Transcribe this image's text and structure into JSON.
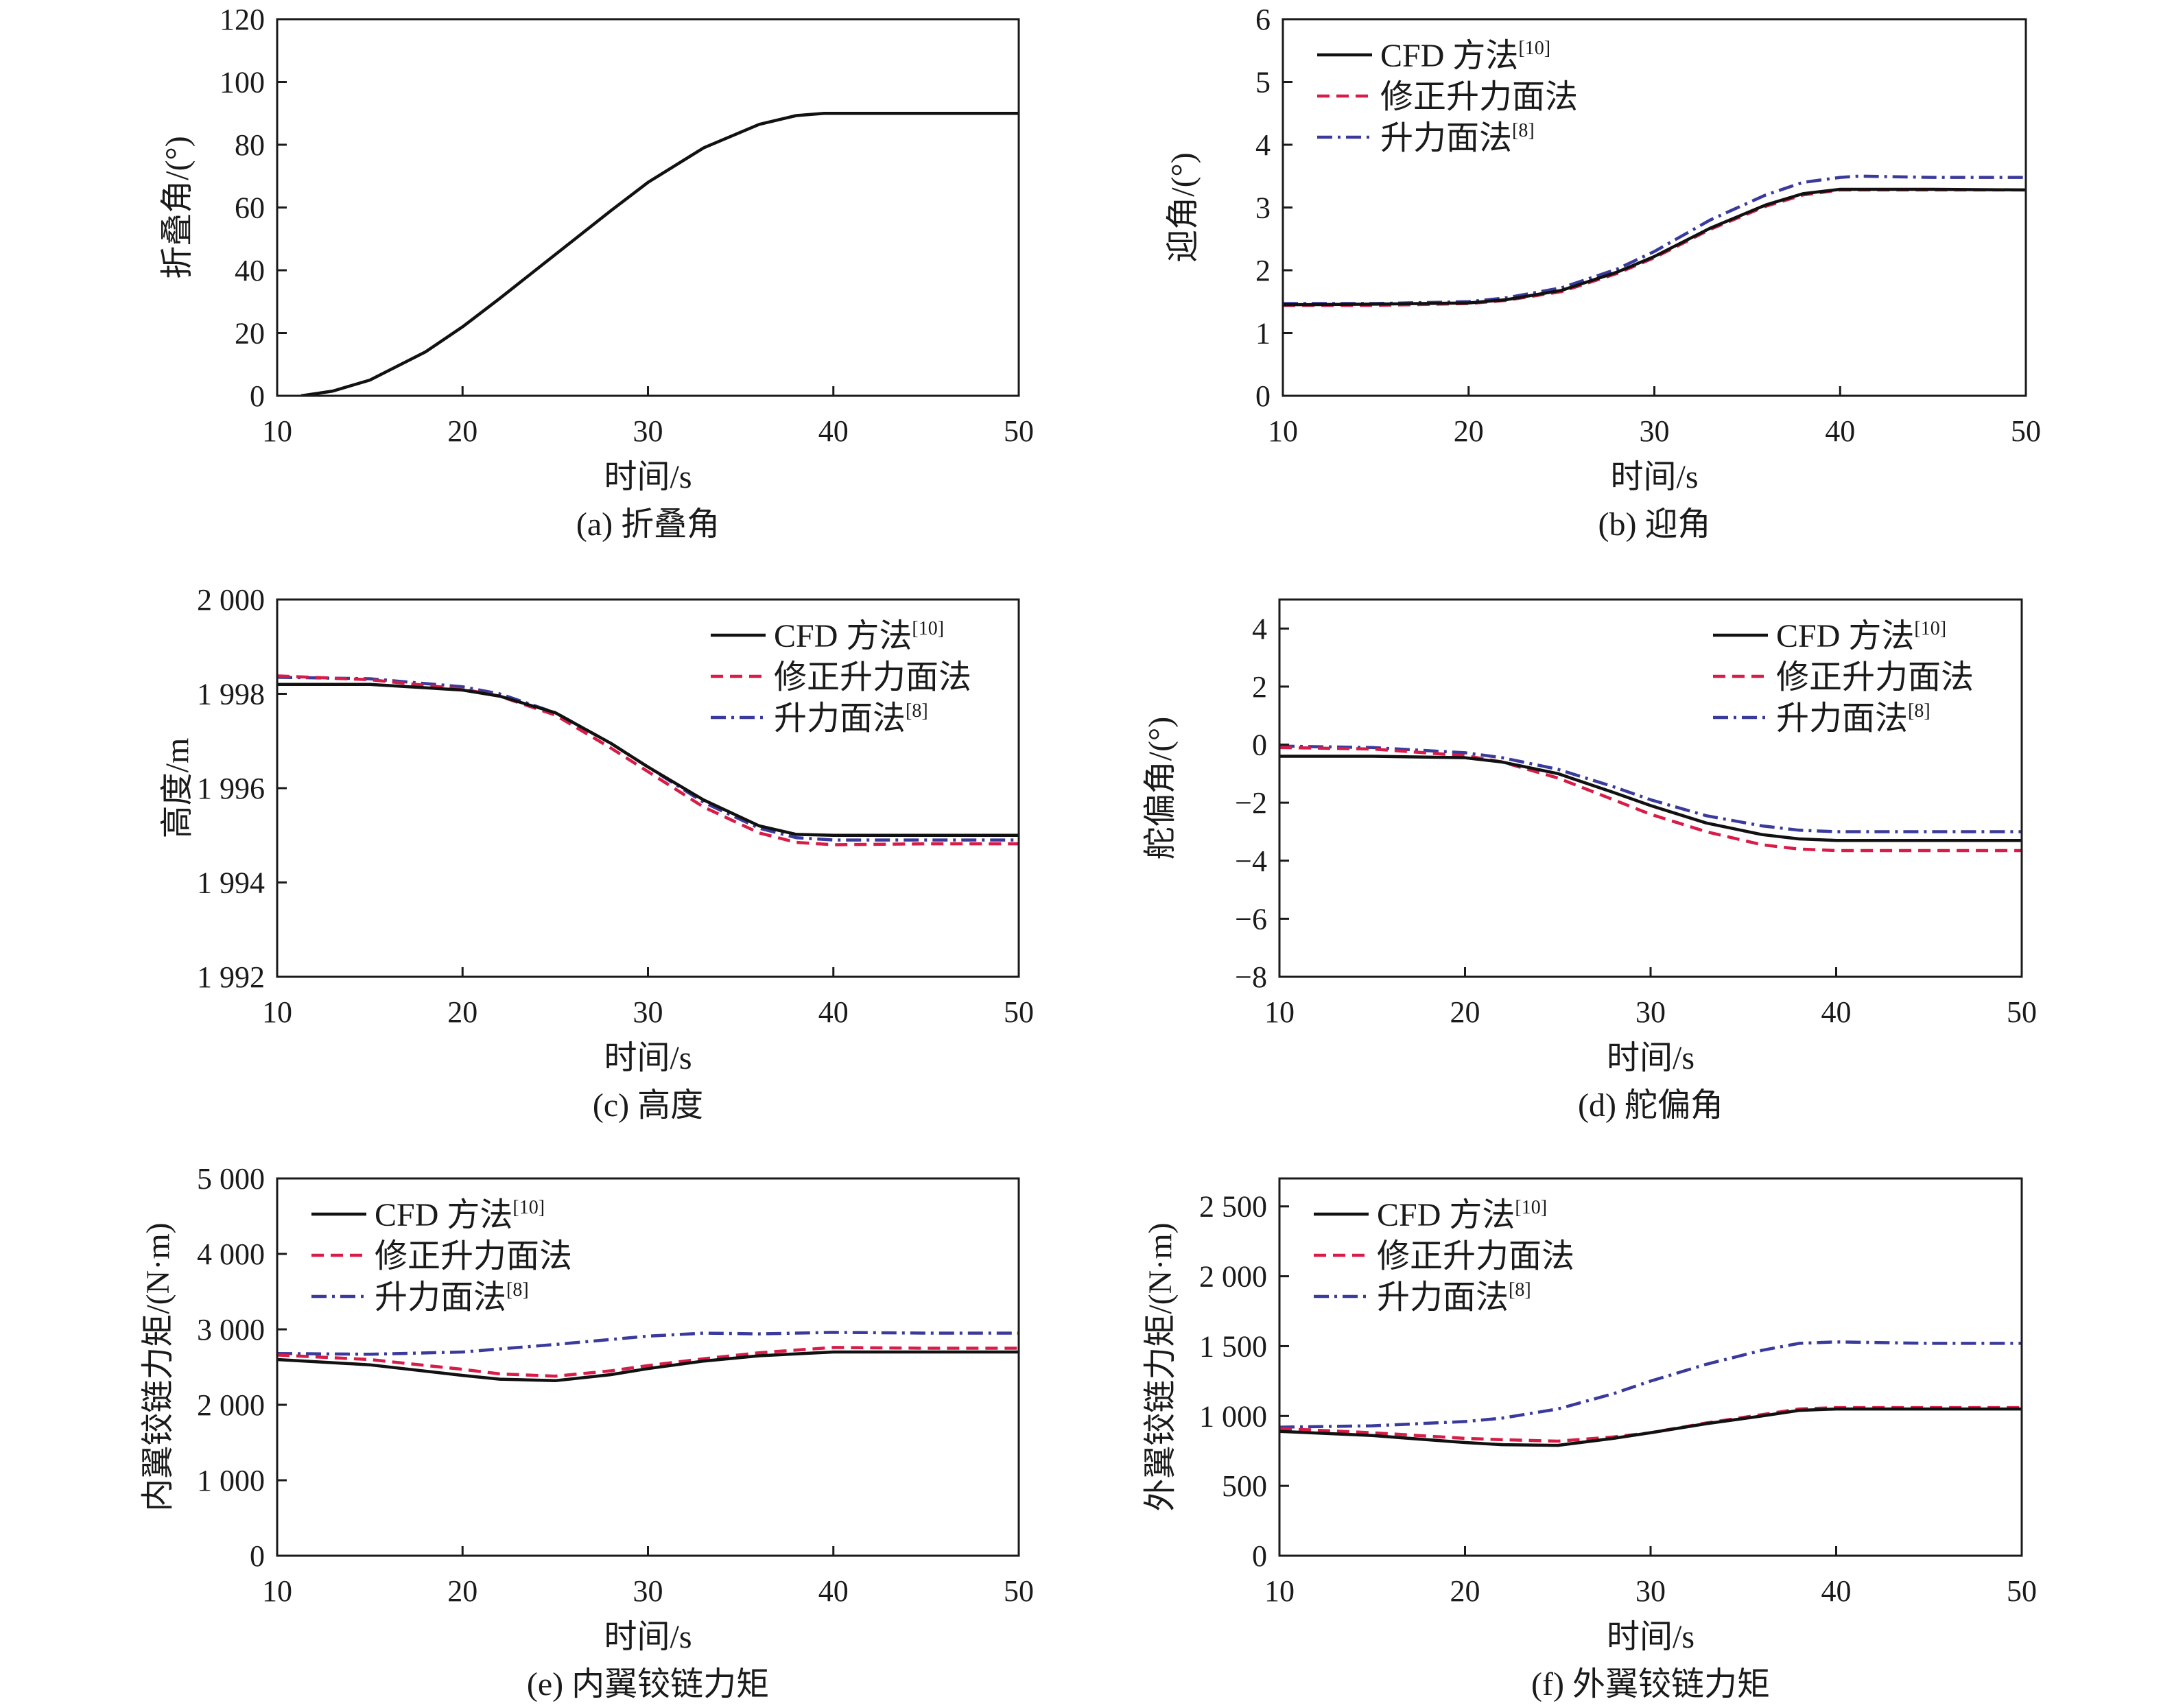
{
  "styles": {
    "cfd": {
      "color": "#111111",
      "dash": ""
    },
    "corrected": {
      "color": "#d81b47",
      "dash": "18,10"
    },
    "lifting": {
      "color": "#3a3a9c",
      "dash": "22,8,4,8"
    }
  },
  "chart_data": [
    {
      "id": "a",
      "type": "line",
      "caption": "(a) 折叠角",
      "xlabel": "时间/s",
      "ylabel": "折叠角/(°)",
      "xlim": [
        10,
        50
      ],
      "ylim": [
        0,
        120
      ],
      "xticks": [
        10,
        20,
        30,
        40,
        50
      ],
      "yticks": [
        0,
        20,
        40,
        60,
        80,
        100,
        120
      ],
      "ytick_labels": [
        "0",
        "20",
        "40",
        "60",
        "80",
        "100",
        "120"
      ],
      "legend": null,
      "series": [
        {
          "key": "cfd",
          "x": [
            11.3,
            13,
            15,
            18,
            20,
            22,
            25,
            28,
            30,
            33,
            36,
            38,
            39.5,
            41,
            45,
            50
          ],
          "y": [
            0,
            1.5,
            5,
            14,
            22,
            31,
            45,
            59,
            68,
            79,
            86.5,
            89.3,
            90,
            90,
            90,
            90
          ]
        }
      ]
    },
    {
      "id": "b",
      "type": "line",
      "caption": "(b) 迎角",
      "xlabel": "时间/s",
      "ylabel": "迎角/(°)",
      "xlim": [
        10,
        50
      ],
      "ylim": [
        0,
        6
      ],
      "xticks": [
        10,
        20,
        30,
        40,
        50
      ],
      "yticks": [
        0,
        1,
        2,
        3,
        4,
        5,
        6
      ],
      "ytick_labels": [
        "0",
        "1",
        "2",
        "3",
        "4",
        "5",
        "6"
      ],
      "legend": {
        "position": "top-left",
        "entries": [
          {
            "key": "cfd",
            "label": "CFD 方法",
            "ref": "[10]"
          },
          {
            "key": "corrected",
            "label": "修正升力面法",
            "ref": ""
          },
          {
            "key": "lifting",
            "label": "升力面法",
            "ref": "[8]"
          }
        ]
      },
      "series": [
        {
          "key": "lifting",
          "x": [
            10,
            15,
            20,
            22,
            25,
            28,
            30,
            33,
            36,
            38,
            40,
            41,
            45,
            50
          ],
          "y": [
            1.47,
            1.47,
            1.5,
            1.56,
            1.72,
            2.02,
            2.3,
            2.8,
            3.2,
            3.4,
            3.48,
            3.5,
            3.48,
            3.48
          ]
        },
        {
          "key": "corrected",
          "x": [
            10,
            15,
            20,
            22,
            25,
            28,
            30,
            33,
            36,
            38,
            40,
            45,
            50
          ],
          "y": [
            1.44,
            1.44,
            1.47,
            1.52,
            1.66,
            1.95,
            2.2,
            2.65,
            3.02,
            3.2,
            3.28,
            3.28,
            3.28
          ]
        },
        {
          "key": "cfd",
          "x": [
            10,
            15,
            20,
            22,
            25,
            28,
            30,
            33,
            36,
            38,
            40,
            45,
            50
          ],
          "y": [
            1.45,
            1.46,
            1.48,
            1.53,
            1.68,
            1.97,
            2.22,
            2.67,
            3.04,
            3.22,
            3.29,
            3.29,
            3.28
          ]
        }
      ]
    },
    {
      "id": "c",
      "type": "line",
      "caption": "(c) 高度",
      "xlabel": "时间/s",
      "ylabel": "高度/m",
      "xlim": [
        10,
        50
      ],
      "ylim": [
        1992,
        2000
      ],
      "xticks": [
        10,
        20,
        30,
        40,
        50
      ],
      "yticks": [
        1992,
        1994,
        1996,
        1998,
        2000
      ],
      "ytick_labels": [
        "1 992",
        "1 994",
        "1 996",
        "1 998",
        "2 000"
      ],
      "legend": {
        "position": "top-right",
        "entries": [
          {
            "key": "cfd",
            "label": "CFD 方法",
            "ref": "[10]"
          },
          {
            "key": "corrected",
            "label": "修正升力面法",
            "ref": ""
          },
          {
            "key": "lifting",
            "label": "升力面法",
            "ref": "[8]"
          }
        ]
      },
      "series": [
        {
          "key": "lifting",
          "x": [
            10,
            15,
            20,
            22,
            25,
            28,
            30,
            33,
            36,
            38,
            40,
            45,
            50
          ],
          "y": [
            1998.35,
            1998.32,
            1998.15,
            1998.0,
            1997.6,
            1996.95,
            1996.45,
            1995.7,
            1995.15,
            1994.95,
            1994.9,
            1994.9,
            1994.9
          ]
        },
        {
          "key": "corrected",
          "x": [
            10,
            15,
            20,
            22,
            25,
            28,
            30,
            33,
            36,
            38,
            40,
            45,
            50
          ],
          "y": [
            1998.38,
            1998.3,
            1998.1,
            1997.95,
            1997.55,
            1996.85,
            1996.35,
            1995.6,
            1995.05,
            1994.85,
            1994.8,
            1994.82,
            1994.82
          ]
        },
        {
          "key": "cfd",
          "x": [
            10,
            15,
            20,
            22,
            25,
            28,
            30,
            33,
            36,
            38,
            40,
            45,
            50
          ],
          "y": [
            1998.2,
            1998.2,
            1998.08,
            1997.95,
            1997.6,
            1996.95,
            1996.45,
            1995.75,
            1995.2,
            1995.02,
            1995.0,
            1995.0,
            1995.0
          ]
        }
      ]
    },
    {
      "id": "d",
      "type": "line",
      "caption": "(d) 舵偏角",
      "xlabel": "时间/s",
      "ylabel": "舵偏角/(°)",
      "xlim": [
        10,
        50
      ],
      "ylim": [
        -8,
        5
      ],
      "xticks": [
        10,
        20,
        30,
        40,
        50
      ],
      "yticks": [
        -8,
        -6,
        -4,
        -2,
        0,
        2,
        4
      ],
      "ytick_labels": [
        "−8",
        "−6",
        "−4",
        "−2",
        "0",
        "2",
        "4"
      ],
      "legend": {
        "position": "top-right",
        "entries": [
          {
            "key": "cfd",
            "label": "CFD 方法",
            "ref": "[10]"
          },
          {
            "key": "corrected",
            "label": "修正升力面法",
            "ref": ""
          },
          {
            "key": "lifting",
            "label": "升力面法",
            "ref": "[8]"
          }
        ]
      },
      "series": [
        {
          "key": "lifting",
          "x": [
            10,
            15,
            20,
            22,
            25,
            28,
            30,
            33,
            36,
            38,
            40,
            45,
            50
          ],
          "y": [
            -0.05,
            -0.1,
            -0.28,
            -0.45,
            -0.85,
            -1.45,
            -1.9,
            -2.45,
            -2.8,
            -2.95,
            -3.0,
            -3.0,
            -3.0
          ]
        },
        {
          "key": "corrected",
          "x": [
            10,
            15,
            20,
            22,
            25,
            28,
            30,
            33,
            36,
            38,
            40,
            45,
            50
          ],
          "y": [
            -0.1,
            -0.15,
            -0.38,
            -0.6,
            -1.15,
            -1.9,
            -2.4,
            -3.0,
            -3.45,
            -3.6,
            -3.65,
            -3.65,
            -3.65
          ]
        },
        {
          "key": "cfd",
          "x": [
            10,
            15,
            20,
            22,
            25,
            28,
            30,
            33,
            36,
            38,
            40,
            45,
            50
          ],
          "y": [
            -0.4,
            -0.4,
            -0.45,
            -0.6,
            -1.0,
            -1.65,
            -2.1,
            -2.7,
            -3.1,
            -3.25,
            -3.3,
            -3.3,
            -3.3
          ]
        }
      ]
    },
    {
      "id": "e",
      "type": "line",
      "caption": "(e) 内翼铰链力矩",
      "xlabel": "时间/s",
      "ylabel": "内翼铰链力矩/(N·m)",
      "xlim": [
        10,
        50
      ],
      "ylim": [
        0,
        5000
      ],
      "xticks": [
        10,
        20,
        30,
        40,
        50
      ],
      "yticks": [
        0,
        1000,
        2000,
        3000,
        4000,
        5000
      ],
      "ytick_labels": [
        "0",
        "1 000",
        "2 000",
        "3 000",
        "4 000",
        "5 000"
      ],
      "legend": {
        "position": "top-left",
        "entries": [
          {
            "key": "cfd",
            "label": "CFD 方法",
            "ref": "[10]"
          },
          {
            "key": "corrected",
            "label": "修正升力面法",
            "ref": ""
          },
          {
            "key": "lifting",
            "label": "升力面法",
            "ref": "[8]"
          }
        ]
      },
      "series": [
        {
          "key": "lifting",
          "x": [
            10,
            15,
            20,
            25,
            30,
            33,
            36,
            40,
            45,
            50
          ],
          "y": [
            2680,
            2670,
            2700,
            2800,
            2910,
            2950,
            2940,
            2960,
            2950,
            2950
          ]
        },
        {
          "key": "corrected",
          "x": [
            10,
            15,
            20,
            22,
            25,
            28,
            30,
            33,
            36,
            40,
            45,
            50
          ],
          "y": [
            2660,
            2600,
            2470,
            2410,
            2380,
            2450,
            2520,
            2610,
            2690,
            2760,
            2750,
            2750
          ]
        },
        {
          "key": "cfd",
          "x": [
            10,
            15,
            20,
            22,
            25,
            28,
            30,
            33,
            36,
            40,
            45,
            50
          ],
          "y": [
            2600,
            2530,
            2390,
            2340,
            2320,
            2400,
            2480,
            2580,
            2650,
            2700,
            2700,
            2700
          ]
        }
      ]
    },
    {
      "id": "f",
      "type": "line",
      "caption": "(f) 外翼铰链力矩",
      "xlabel": "时间/s",
      "ylabel": "外翼铰链力矩/(N·m)",
      "xlim": [
        10,
        50
      ],
      "ylim": [
        0,
        2700
      ],
      "xticks": [
        10,
        20,
        30,
        40,
        50
      ],
      "yticks": [
        0,
        500,
        1000,
        1500,
        2000,
        2500
      ],
      "ytick_labels": [
        "0",
        "500",
        "1 000",
        "1 500",
        "2 000",
        "2 500"
      ],
      "legend": {
        "position": "top-left",
        "entries": [
          {
            "key": "cfd",
            "label": "CFD 方法",
            "ref": "[10]"
          },
          {
            "key": "corrected",
            "label": "修正升力面法",
            "ref": ""
          },
          {
            "key": "lifting",
            "label": "升力面法",
            "ref": "[8]"
          }
        ]
      },
      "series": [
        {
          "key": "lifting",
          "x": [
            10,
            15,
            20,
            22,
            25,
            28,
            30,
            33,
            36,
            38,
            40,
            45,
            50
          ],
          "y": [
            920,
            930,
            960,
            985,
            1050,
            1160,
            1250,
            1370,
            1470,
            1520,
            1530,
            1520,
            1520
          ]
        },
        {
          "key": "corrected",
          "x": [
            10,
            15,
            20,
            22,
            25,
            28,
            30,
            33,
            36,
            38,
            40,
            45,
            50
          ],
          "y": [
            910,
            880,
            840,
            830,
            820,
            850,
            880,
            950,
            1010,
            1050,
            1060,
            1060,
            1060
          ]
        },
        {
          "key": "cfd",
          "x": [
            10,
            15,
            20,
            22,
            25,
            28,
            30,
            33,
            36,
            38,
            40,
            45,
            50
          ],
          "y": [
            890,
            860,
            810,
            795,
            790,
            840,
            880,
            945,
            1000,
            1040,
            1050,
            1050,
            1050
          ]
        }
      ]
    }
  ]
}
